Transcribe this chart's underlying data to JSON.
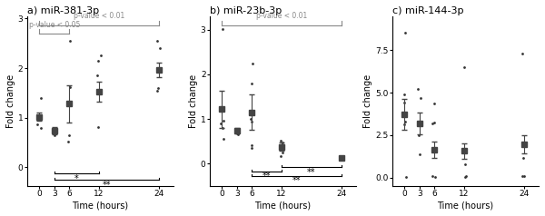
{
  "panels": [
    {
      "title": "a) miR-381-3p",
      "x": [
        0,
        3,
        6,
        12,
        24
      ],
      "means": [
        1.02,
        0.74,
        1.28,
        1.52,
        1.97
      ],
      "errors": [
        0.08,
        0.07,
        0.38,
        0.2,
        0.15
      ],
      "scatter_pts": {
        "0": [
          0.87,
          0.8,
          0.95,
          1.02,
          1.4
        ],
        "3": [
          0.65,
          0.68,
          0.75
        ],
        "6": [
          0.52,
          0.65,
          1.62,
          2.55
        ],
        "12": [
          0.82,
          1.85,
          2.15,
          2.25
        ],
        "24": [
          1.55,
          1.6,
          2.4,
          2.55
        ]
      },
      "ylim": [
        -0.38,
        3.05
      ],
      "yticks": [
        0,
        1,
        2,
        3
      ],
      "ylabel": "Fold change",
      "xlabel": "Time (hours)"
    },
    {
      "title": "b) miR-23b-3p",
      "x": [
        0,
        3,
        6,
        12,
        24
      ],
      "means": [
        1.22,
        0.74,
        1.15,
        0.38,
        0.13
      ],
      "errors": [
        0.42,
        0.07,
        0.4,
        0.09,
        0.03
      ],
      "scatter_pts": {
        "0": [
          3.02,
          0.97,
          0.9,
          0.8,
          0.55
        ],
        "3": [
          0.75,
          0.68,
          0.65
        ],
        "6": [
          2.25,
          1.8,
          1.0,
          0.95,
          0.42,
          0.35
        ],
        "12": [
          0.52,
          0.48,
          0.25,
          0.18
        ],
        "24": [
          0.18,
          0.15,
          0.13,
          0.1
        ]
      },
      "ylim": [
        -0.5,
        3.3
      ],
      "yticks": [
        0,
        1,
        2,
        3
      ],
      "ylabel": "Fold change",
      "xlabel": "Time (hours)"
    },
    {
      "title": "c) miR-144-3p",
      "x": [
        0,
        3,
        6,
        12,
        24
      ],
      "means": [
        3.73,
        3.2,
        1.65,
        1.58,
        1.97
      ],
      "errors": [
        0.9,
        0.65,
        0.48,
        0.45,
        0.55
      ],
      "scatter_pts": {
        "0": [
          8.55,
          4.9,
          4.4,
          3.3,
          3.15,
          0.02
        ],
        "3": [
          5.2,
          4.7,
          3.25,
          2.5,
          1.35
        ],
        "6": [
          4.35,
          3.25,
          3.2,
          0.08,
          0.05
        ],
        "12": [
          6.5,
          0.8,
          0.08,
          0.05
        ],
        "24": [
          7.3,
          1.15,
          0.1,
          0.08
        ]
      },
      "ylim": [
        -0.5,
        9.5
      ],
      "yticks": [
        0.0,
        2.5,
        5.0,
        7.5
      ],
      "ylabel": "Fold change",
      "xlabel": "Time (hours)"
    }
  ],
  "xticks": [
    0,
    3,
    6,
    12,
    24
  ],
  "line_color": "#444444",
  "marker": "s",
  "markersize": 4,
  "scatter_color": "#333333",
  "scatter_size": 4,
  "fontsize_title": 8,
  "fontsize_axis": 7,
  "fontsize_tick": 6.5,
  "fontsize_annot": 7,
  "background": "#ffffff"
}
